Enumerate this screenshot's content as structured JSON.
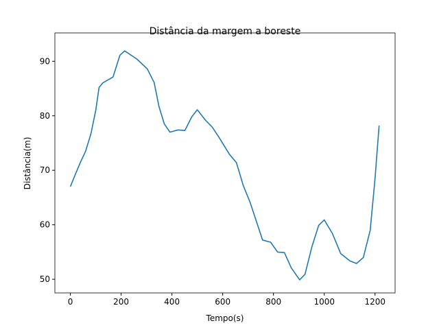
{
  "chart_data": {
    "type": "line",
    "title": "Distância da margem a boreste",
    "x_label": "Tempo(s)",
    "y_label": "Distância(m)",
    "x": [
      0,
      20,
      40,
      60,
      81,
      100,
      113,
      127,
      168,
      195,
      214,
      262,
      303,
      330,
      349,
      370,
      392,
      424,
      451,
      478,
      500,
      532,
      559,
      586,
      627,
      654,
      681,
      708,
      735,
      757,
      789,
      816,
      843,
      870,
      903,
      924,
      951,
      978,
      1000,
      1032,
      1065,
      1100,
      1127,
      1154,
      1181,
      1200,
      1216
    ],
    "series": [
      {
        "name": "Distância",
        "color": "#1f77b4",
        "values": [
          67.0,
          69.3,
          71.5,
          73.5,
          76.7,
          81.0,
          85.2,
          86.0,
          87.1,
          91.1,
          91.9,
          90.4,
          88.6,
          86.1,
          81.7,
          78.5,
          77.0,
          77.4,
          77.3,
          79.8,
          81.1,
          79.2,
          77.9,
          76.0,
          72.9,
          71.4,
          67.2,
          64.1,
          60.3,
          57.2,
          56.8,
          55.0,
          54.9,
          52.1,
          49.9,
          50.9,
          55.9,
          59.9,
          60.9,
          58.4,
          54.7,
          53.4,
          52.9,
          54.0,
          59.0,
          68.5,
          78.2
        ]
      }
    ],
    "xlim": [
      -61,
      1279
    ],
    "ylim": [
      47.5,
      95.2
    ],
    "xticks": [
      0,
      200,
      400,
      600,
      800,
      1000,
      1200
    ],
    "yticks": [
      50,
      60,
      70,
      80,
      90
    ]
  }
}
